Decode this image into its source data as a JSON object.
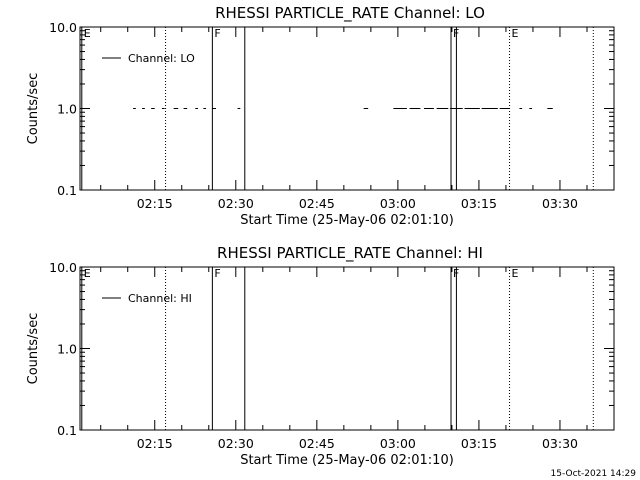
{
  "footer_timestamp": "15-Oct-2021 14:29",
  "chart_data": [
    {
      "type": "line",
      "title": "RHESSI PARTICLE_RATE Channel: LO",
      "xlabel": "Start Time (25-May-06 02:01:10)",
      "ylabel": "Counts/sec",
      "y_scale": "log",
      "ylim": [
        0.1,
        10.0
      ],
      "y_ticks": [
        {
          "value": 0.1,
          "label": "0.1"
        },
        {
          "value": 1.0,
          "label": "1.0"
        },
        {
          "value": 10.0,
          "label": "10.0"
        }
      ],
      "xlim": [
        "02:01:10",
        "03:40:00"
      ],
      "x_ticks": [
        "02:15",
        "02:30",
        "02:45",
        "03:00",
        "03:15",
        "03:30"
      ],
      "grid": false,
      "legend": {
        "position": "top-left",
        "entries": [
          "Channel: LO"
        ]
      },
      "series": [
        {
          "name": "Channel: LO",
          "segments": [
            {
              "x": [
                "02:11:00",
                "02:11:30"
              ],
              "y": [
                1.0,
                1.0
              ]
            },
            {
              "x": [
                "02:12:40",
                "02:13:10"
              ],
              "y": [
                1.0,
                1.0
              ]
            },
            {
              "x": [
                "02:14:20",
                "02:15:00"
              ],
              "y": [
                1.0,
                1.0
              ]
            },
            {
              "x": [
                "02:16:20",
                "02:16:50"
              ],
              "y": [
                1.0,
                1.0
              ]
            },
            {
              "x": [
                "02:18:30",
                "02:19:20"
              ],
              "y": [
                1.0,
                1.0
              ]
            },
            {
              "x": [
                "02:20:20",
                "02:21:00"
              ],
              "y": [
                1.0,
                1.0
              ]
            },
            {
              "x": [
                "02:22:30",
                "02:23:00"
              ],
              "y": [
                1.0,
                1.0
              ]
            },
            {
              "x": [
                "02:24:00",
                "02:24:30"
              ],
              "y": [
                1.0,
                1.0
              ]
            },
            {
              "x": [
                "02:25:40",
                "02:26:20"
              ],
              "y": [
                1.0,
                1.0
              ]
            },
            {
              "x": [
                "02:30:20",
                "02:30:50"
              ],
              "y": [
                1.0,
                1.0
              ]
            },
            {
              "x": [
                "02:53:40",
                "02:54:30"
              ],
              "y": [
                1.0,
                1.0
              ]
            },
            {
              "x": [
                "02:59:10",
                "03:01:40"
              ],
              "y": [
                1.0,
                1.0
              ]
            },
            {
              "x": [
                "03:02:10",
                "03:04:10"
              ],
              "y": [
                1.0,
                1.0
              ]
            },
            {
              "x": [
                "03:04:50",
                "03:06:40"
              ],
              "y": [
                1.0,
                1.0
              ]
            },
            {
              "x": [
                "03:07:10",
                "03:09:20"
              ],
              "y": [
                1.0,
                1.0
              ]
            },
            {
              "x": [
                "03:09:40",
                "03:12:00"
              ],
              "y": [
                1.0,
                1.0
              ]
            },
            {
              "x": [
                "03:12:20",
                "03:15:10"
              ],
              "y": [
                1.0,
                1.0
              ]
            },
            {
              "x": [
                "03:15:30",
                "03:18:30"
              ],
              "y": [
                1.0,
                1.0
              ]
            },
            {
              "x": [
                "03:18:50",
                "03:20:40"
              ],
              "y": [
                1.0,
                1.0
              ]
            },
            {
              "x": [
                "03:22:30",
                "03:23:00"
              ],
              "y": [
                1.0,
                1.0
              ]
            },
            {
              "x": [
                "03:24:20",
                "03:24:50"
              ],
              "y": [
                1.0,
                1.0
              ]
            },
            {
              "x": [
                "03:27:40",
                "03:28:40"
              ],
              "y": [
                1.0,
                1.0
              ]
            }
          ]
        }
      ],
      "markers": [
        {
          "time": "02:01:30",
          "style": "solid",
          "flag": "E"
        },
        {
          "time": "02:17:00",
          "style": "dotted",
          "flag": ""
        },
        {
          "time": "02:25:40",
          "style": "solid",
          "flag": "F"
        },
        {
          "time": "02:31:40",
          "style": "solid",
          "flag": ""
        },
        {
          "time": "03:09:50",
          "style": "solid",
          "flag": "F"
        },
        {
          "time": "03:10:50",
          "style": "solid",
          "flag": ""
        },
        {
          "time": "03:20:40",
          "style": "dotted",
          "flag": "E"
        },
        {
          "time": "03:36:10",
          "style": "dotted",
          "flag": ""
        }
      ]
    },
    {
      "type": "line",
      "title": "RHESSI PARTICLE_RATE Channel: HI",
      "xlabel": "Start Time (25-May-06 02:01:10)",
      "ylabel": "Counts/sec",
      "y_scale": "log",
      "ylim": [
        0.1,
        10.0
      ],
      "y_ticks": [
        {
          "value": 0.1,
          "label": "0.1"
        },
        {
          "value": 1.0,
          "label": "1.0"
        },
        {
          "value": 10.0,
          "label": "10.0"
        }
      ],
      "xlim": [
        "02:01:10",
        "03:40:00"
      ],
      "x_ticks": [
        "02:15",
        "02:30",
        "02:45",
        "03:00",
        "03:15",
        "03:30"
      ],
      "grid": false,
      "legend": {
        "position": "top-left",
        "entries": [
          "Channel: HI"
        ]
      },
      "series": [
        {
          "name": "Channel: HI",
          "segments": []
        }
      ],
      "markers": [
        {
          "time": "02:01:30",
          "style": "solid",
          "flag": "E"
        },
        {
          "time": "02:17:00",
          "style": "dotted",
          "flag": ""
        },
        {
          "time": "02:25:40",
          "style": "solid",
          "flag": "F"
        },
        {
          "time": "02:31:40",
          "style": "solid",
          "flag": ""
        },
        {
          "time": "03:09:50",
          "style": "solid",
          "flag": "F"
        },
        {
          "time": "03:10:50",
          "style": "solid",
          "flag": ""
        },
        {
          "time": "03:20:40",
          "style": "dotted",
          "flag": "E"
        },
        {
          "time": "03:36:10",
          "style": "dotted",
          "flag": ""
        }
      ]
    }
  ]
}
